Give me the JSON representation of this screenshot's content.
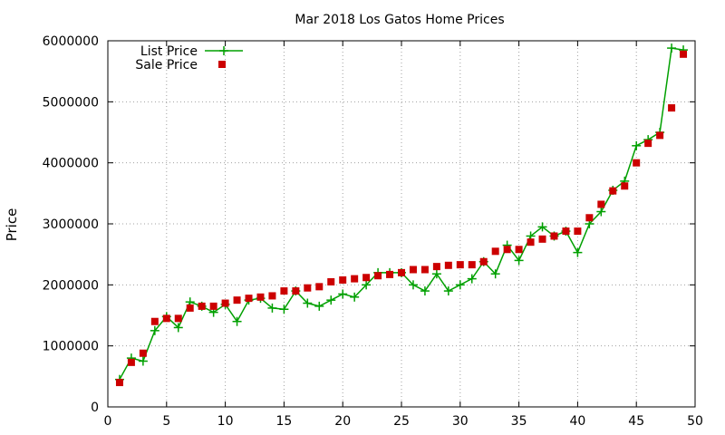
{
  "chart_data": {
    "type": "line",
    "title": "Mar 2018 Los Gatos Home Prices",
    "xlabel": "",
    "ylabel": "Price",
    "xlim": [
      0,
      50
    ],
    "ylim": [
      0,
      6000000
    ],
    "x_ticks": [
      0,
      5,
      10,
      15,
      20,
      25,
      30,
      35,
      40,
      45,
      50
    ],
    "y_ticks": [
      0,
      1000000,
      2000000,
      3000000,
      4000000,
      5000000,
      6000000
    ],
    "grid": true,
    "legend_position": "top-left",
    "x": [
      1,
      2,
      3,
      4,
      5,
      6,
      7,
      8,
      9,
      10,
      11,
      12,
      13,
      14,
      15,
      16,
      17,
      18,
      19,
      20,
      21,
      22,
      23,
      24,
      25,
      26,
      27,
      28,
      29,
      30,
      31,
      32,
      33,
      34,
      35,
      36,
      37,
      38,
      39,
      40,
      41,
      42,
      43,
      44,
      45,
      46,
      47,
      48,
      49
    ],
    "series": [
      {
        "name": "List Price",
        "style": "line-plus",
        "color": "#00a000",
        "values": [
          450000,
          800000,
          750000,
          1250000,
          1480000,
          1300000,
          1720000,
          1650000,
          1550000,
          1680000,
          1400000,
          1750000,
          1780000,
          1620000,
          1600000,
          1900000,
          1700000,
          1650000,
          1750000,
          1850000,
          1800000,
          2000000,
          2200000,
          2200000,
          2200000,
          2000000,
          1900000,
          2180000,
          1900000,
          2000000,
          2100000,
          2380000,
          2180000,
          2650000,
          2400000,
          2800000,
          2950000,
          2800000,
          2880000,
          2530000,
          3000000,
          3200000,
          3550000,
          3700000,
          4280000,
          4380000,
          4500000,
          5880000,
          5850000
        ]
      },
      {
        "name": "Sale Price",
        "style": "square",
        "color": "#cc0000",
        "values": [
          400000,
          730000,
          880000,
          1400000,
          1450000,
          1450000,
          1620000,
          1650000,
          1650000,
          1700000,
          1750000,
          1780000,
          1800000,
          1820000,
          1900000,
          1900000,
          1950000,
          1970000,
          2050000,
          2080000,
          2100000,
          2120000,
          2150000,
          2170000,
          2200000,
          2250000,
          2250000,
          2300000,
          2320000,
          2330000,
          2330000,
          2380000,
          2550000,
          2580000,
          2580000,
          2700000,
          2750000,
          2800000,
          2880000,
          2880000,
          3100000,
          3320000,
          3540000,
          3620000,
          4000000,
          4320000,
          4450000,
          4900000,
          5780000
        ]
      }
    ]
  }
}
